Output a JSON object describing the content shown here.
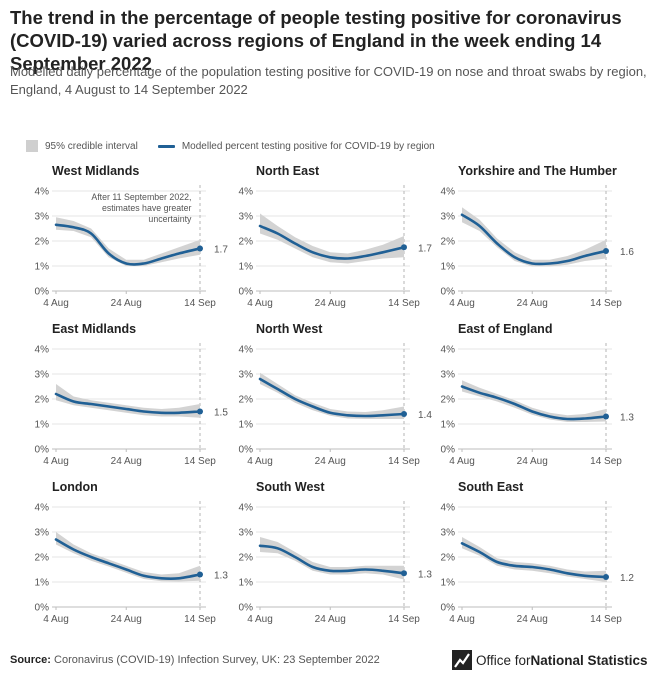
{
  "title": "The trend in the percentage of people testing positive for coronavirus (COVID-19) varied across regions of England in the week ending 14 September 2022",
  "subtitle": "Modelled daily percentage of the population testing positive for COVID-19 on nose and throat swabs by region, England, 4 August to 14 September 2022",
  "legend": {
    "interval": "95% credible interval",
    "line": "Modelled percent testing positive for COVID-19 by region"
  },
  "footer": {
    "source_label": "Source:",
    "source_text": "Coronavirus (COVID-19) Infection Survey, UK: 23 September 2022"
  },
  "logo": {
    "text_plain": "Office for ",
    "text_bold": "National Statistics"
  },
  "colors": {
    "line": "#206095",
    "band": "#d3d3d3",
    "grid": "#e6e6e6",
    "text": "#222222",
    "muted": "#555555"
  },
  "chart_data": {
    "type": "line",
    "x_ticks": [
      "4 Aug",
      "24 Aug",
      "14 Sep"
    ],
    "y_ticks": [
      "0%",
      "1%",
      "2%",
      "3%",
      "4%"
    ],
    "ylim": [
      0,
      4
    ],
    "x_range": [
      "2022-08-04",
      "2022-09-14"
    ],
    "annotation": "After 11 September 2022, estimates have greater uncertainty",
    "annotation_date": "2022-09-11",
    "panels": [
      {
        "name": "West Midlands",
        "end_label": "1.7",
        "x": [
          "2022-08-04",
          "2022-08-09",
          "2022-08-14",
          "2022-08-19",
          "2022-08-24",
          "2022-08-29",
          "2022-09-03",
          "2022-09-08",
          "2022-09-14"
        ],
        "y": [
          2.65,
          2.55,
          2.3,
          1.5,
          1.1,
          1.1,
          1.3,
          1.5,
          1.7
        ],
        "lower": [
          2.45,
          2.4,
          2.15,
          1.35,
          1.0,
          1.0,
          1.15,
          1.3,
          1.45
        ],
        "upper": [
          2.95,
          2.8,
          2.5,
          1.7,
          1.25,
          1.25,
          1.5,
          1.75,
          2.05
        ]
      },
      {
        "name": "North East",
        "end_label": "1.7",
        "x": [
          "2022-08-04",
          "2022-08-09",
          "2022-08-14",
          "2022-08-19",
          "2022-08-24",
          "2022-08-29",
          "2022-09-03",
          "2022-09-08",
          "2022-09-14"
        ],
        "y": [
          2.6,
          2.3,
          1.9,
          1.55,
          1.35,
          1.3,
          1.4,
          1.55,
          1.75
        ],
        "lower": [
          2.3,
          2.05,
          1.7,
          1.35,
          1.15,
          1.1,
          1.2,
          1.3,
          1.35
        ],
        "upper": [
          3.1,
          2.6,
          2.15,
          1.8,
          1.55,
          1.5,
          1.65,
          1.85,
          2.2
        ]
      },
      {
        "name": "Yorkshire and The Humber",
        "end_label": "1.6",
        "x": [
          "2022-08-04",
          "2022-08-09",
          "2022-08-14",
          "2022-08-19",
          "2022-08-24",
          "2022-08-29",
          "2022-09-03",
          "2022-09-08",
          "2022-09-14"
        ],
        "y": [
          3.05,
          2.6,
          1.9,
          1.35,
          1.1,
          1.1,
          1.2,
          1.4,
          1.6
        ],
        "lower": [
          2.75,
          2.4,
          1.75,
          1.2,
          0.98,
          0.98,
          1.05,
          1.2,
          1.3
        ],
        "upper": [
          3.35,
          2.85,
          2.1,
          1.55,
          1.25,
          1.25,
          1.4,
          1.65,
          2.05
        ]
      },
      {
        "name": "East Midlands",
        "end_label": "1.5",
        "x": [
          "2022-08-04",
          "2022-08-09",
          "2022-08-14",
          "2022-08-19",
          "2022-08-24",
          "2022-08-29",
          "2022-09-03",
          "2022-09-08",
          "2022-09-14"
        ],
        "y": [
          2.2,
          1.9,
          1.8,
          1.7,
          1.6,
          1.5,
          1.45,
          1.45,
          1.5
        ],
        "lower": [
          1.95,
          1.75,
          1.65,
          1.55,
          1.45,
          1.35,
          1.3,
          1.3,
          1.25
        ],
        "upper": [
          2.6,
          2.1,
          1.95,
          1.85,
          1.75,
          1.65,
          1.6,
          1.65,
          1.8
        ]
      },
      {
        "name": "North West",
        "end_label": "1.4",
        "x": [
          "2022-08-04",
          "2022-08-09",
          "2022-08-14",
          "2022-08-19",
          "2022-08-24",
          "2022-08-29",
          "2022-09-03",
          "2022-09-08",
          "2022-09-14"
        ],
        "y": [
          2.8,
          2.4,
          2.0,
          1.7,
          1.45,
          1.35,
          1.32,
          1.35,
          1.4
        ],
        "lower": [
          2.6,
          2.25,
          1.85,
          1.55,
          1.33,
          1.22,
          1.2,
          1.2,
          1.2
        ],
        "upper": [
          3.05,
          2.6,
          2.15,
          1.85,
          1.6,
          1.5,
          1.48,
          1.55,
          1.7
        ]
      },
      {
        "name": "East of England",
        "end_label": "1.3",
        "x": [
          "2022-08-04",
          "2022-08-09",
          "2022-08-14",
          "2022-08-19",
          "2022-08-24",
          "2022-08-29",
          "2022-09-03",
          "2022-09-08",
          "2022-09-14"
        ],
        "y": [
          2.5,
          2.25,
          2.05,
          1.8,
          1.5,
          1.3,
          1.2,
          1.22,
          1.3
        ],
        "lower": [
          2.3,
          2.1,
          1.9,
          1.65,
          1.37,
          1.18,
          1.08,
          1.08,
          1.1
        ],
        "upper": [
          2.75,
          2.45,
          2.2,
          1.95,
          1.65,
          1.45,
          1.35,
          1.4,
          1.6
        ]
      },
      {
        "name": "London",
        "end_label": "1.3",
        "x": [
          "2022-08-04",
          "2022-08-09",
          "2022-08-14",
          "2022-08-19",
          "2022-08-24",
          "2022-08-29",
          "2022-09-03",
          "2022-09-08",
          "2022-09-14"
        ],
        "y": [
          2.7,
          2.3,
          2.0,
          1.75,
          1.5,
          1.25,
          1.15,
          1.15,
          1.3
        ],
        "lower": [
          2.5,
          2.15,
          1.85,
          1.62,
          1.37,
          1.12,
          1.03,
          1.02,
          1.05
        ],
        "upper": [
          3.0,
          2.5,
          2.15,
          1.9,
          1.65,
          1.4,
          1.3,
          1.35,
          1.65
        ]
      },
      {
        "name": "South West",
        "end_label": "1.3",
        "x": [
          "2022-08-04",
          "2022-08-09",
          "2022-08-14",
          "2022-08-19",
          "2022-08-24",
          "2022-08-29",
          "2022-09-03",
          "2022-09-08",
          "2022-09-14"
        ],
        "y": [
          2.45,
          2.35,
          2.0,
          1.6,
          1.45,
          1.45,
          1.5,
          1.45,
          1.35
        ],
        "lower": [
          2.2,
          2.15,
          1.85,
          1.45,
          1.3,
          1.3,
          1.35,
          1.3,
          1.1
        ],
        "upper": [
          2.8,
          2.6,
          2.2,
          1.8,
          1.6,
          1.6,
          1.65,
          1.65,
          1.65
        ]
      },
      {
        "name": "South East",
        "end_label": "1.2",
        "x": [
          "2022-08-04",
          "2022-08-09",
          "2022-08-14",
          "2022-08-19",
          "2022-08-24",
          "2022-08-29",
          "2022-09-03",
          "2022-09-08",
          "2022-09-14"
        ],
        "y": [
          2.55,
          2.2,
          1.8,
          1.65,
          1.6,
          1.5,
          1.35,
          1.25,
          1.2
        ],
        "lower": [
          2.35,
          2.05,
          1.65,
          1.5,
          1.45,
          1.35,
          1.22,
          1.12,
          1.0
        ],
        "upper": [
          2.8,
          2.4,
          1.95,
          1.8,
          1.75,
          1.65,
          1.5,
          1.42,
          1.45
        ]
      }
    ]
  }
}
